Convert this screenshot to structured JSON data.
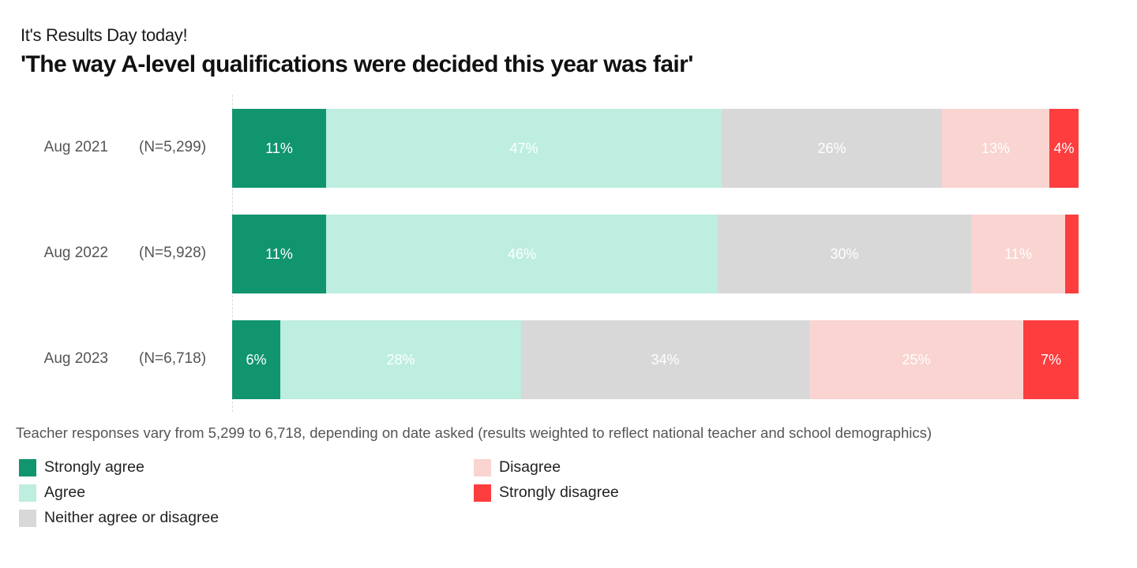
{
  "header": {
    "subtitle": "It's Results Day today!",
    "title": "'The way A-level qualifications were decided this year was fair'"
  },
  "colors": {
    "strongly_agree": "#10956f",
    "agree": "#bdeee0",
    "neither": "#d8d8d8",
    "disagree": "#f9d4d0",
    "strongly_disagree": "#fd3d3e"
  },
  "rows": [
    {
      "date": "Aug 2021",
      "n": "(N=5,299)",
      "segments": [
        {
          "key": "strongly_agree",
          "value": 11,
          "label": "11%",
          "px": 119
        },
        {
          "key": "agree",
          "value": 47,
          "label": "47%",
          "px": 501
        },
        {
          "key": "neither",
          "value": 26,
          "label": "26%",
          "px": 279
        },
        {
          "key": "disagree",
          "value": 13,
          "label": "13%",
          "px": 136
        },
        {
          "key": "strongly_disagree",
          "value": 4,
          "label": "4%",
          "px": 37
        }
      ]
    },
    {
      "date": "Aug 2022",
      "n": "(N=5,928)",
      "segments": [
        {
          "key": "strongly_agree",
          "value": 11,
          "label": "11%",
          "px": 119
        },
        {
          "key": "agree",
          "value": 46,
          "label": "46%",
          "px": 496
        },
        {
          "key": "neither",
          "value": 30,
          "label": "30%",
          "px": 321
        },
        {
          "key": "disagree",
          "value": 11,
          "label": "11%",
          "px": 119
        },
        {
          "key": "strongly_disagree",
          "value": 2,
          "label": "",
          "px": 17
        }
      ]
    },
    {
      "date": "Aug 2023",
      "n": "(N=6,718)",
      "segments": [
        {
          "key": "strongly_agree",
          "value": 6,
          "label": "6%",
          "px": 61
        },
        {
          "key": "agree",
          "value": 28,
          "label": "28%",
          "px": 305
        },
        {
          "key": "neither",
          "value": 34,
          "label": "34%",
          "px": 365
        },
        {
          "key": "disagree",
          "value": 25,
          "label": "25%",
          "px": 271
        },
        {
          "key": "strongly_disagree",
          "value": 7,
          "label": "7%",
          "px": 70
        }
      ]
    }
  ],
  "note": "Teacher responses vary from 5,299 to 6,718, depending on date asked (results weighted to reflect national teacher and school demographics)",
  "legend": [
    {
      "key": "strongly_agree",
      "label": "Strongly agree"
    },
    {
      "key": "agree",
      "label": "Agree"
    },
    {
      "key": "neither",
      "label": "Neither agree or disagree"
    },
    {
      "key": "disagree",
      "label": "Disagree"
    },
    {
      "key": "strongly_disagree",
      "label": "Strongly disagree"
    }
  ],
  "chart_data": {
    "type": "bar",
    "orientation": "horizontal",
    "stacked": true,
    "normalized": true,
    "title": "'The way A-level qualifications were decided this year was fair'",
    "subtitle": "It's Results Day today!",
    "xlabel": "",
    "ylabel": "",
    "xlim": [
      0,
      100
    ],
    "grid": false,
    "legend_position": "bottom",
    "categories": [
      "Aug 2021 (N=5,299)",
      "Aug 2022 (N=5,928)",
      "Aug 2023 (N=6,718)"
    ],
    "series": [
      {
        "name": "Strongly agree",
        "color": "#10956f",
        "values": [
          11,
          11,
          6
        ]
      },
      {
        "name": "Agree",
        "color": "#bdeee0",
        "values": [
          47,
          46,
          28
        ]
      },
      {
        "name": "Neither agree or disagree",
        "color": "#d8d8d8",
        "values": [
          26,
          30,
          34
        ]
      },
      {
        "name": "Disagree",
        "color": "#f9d4d0",
        "values": [
          13,
          11,
          25
        ]
      },
      {
        "name": "Strongly disagree",
        "color": "#fd3d3e",
        "values": [
          4,
          2,
          7
        ]
      }
    ],
    "annotations": [
      "Teacher responses vary from 5,299 to 6,718, depending on date asked (results weighted to reflect national teacher and school demographics)"
    ]
  }
}
